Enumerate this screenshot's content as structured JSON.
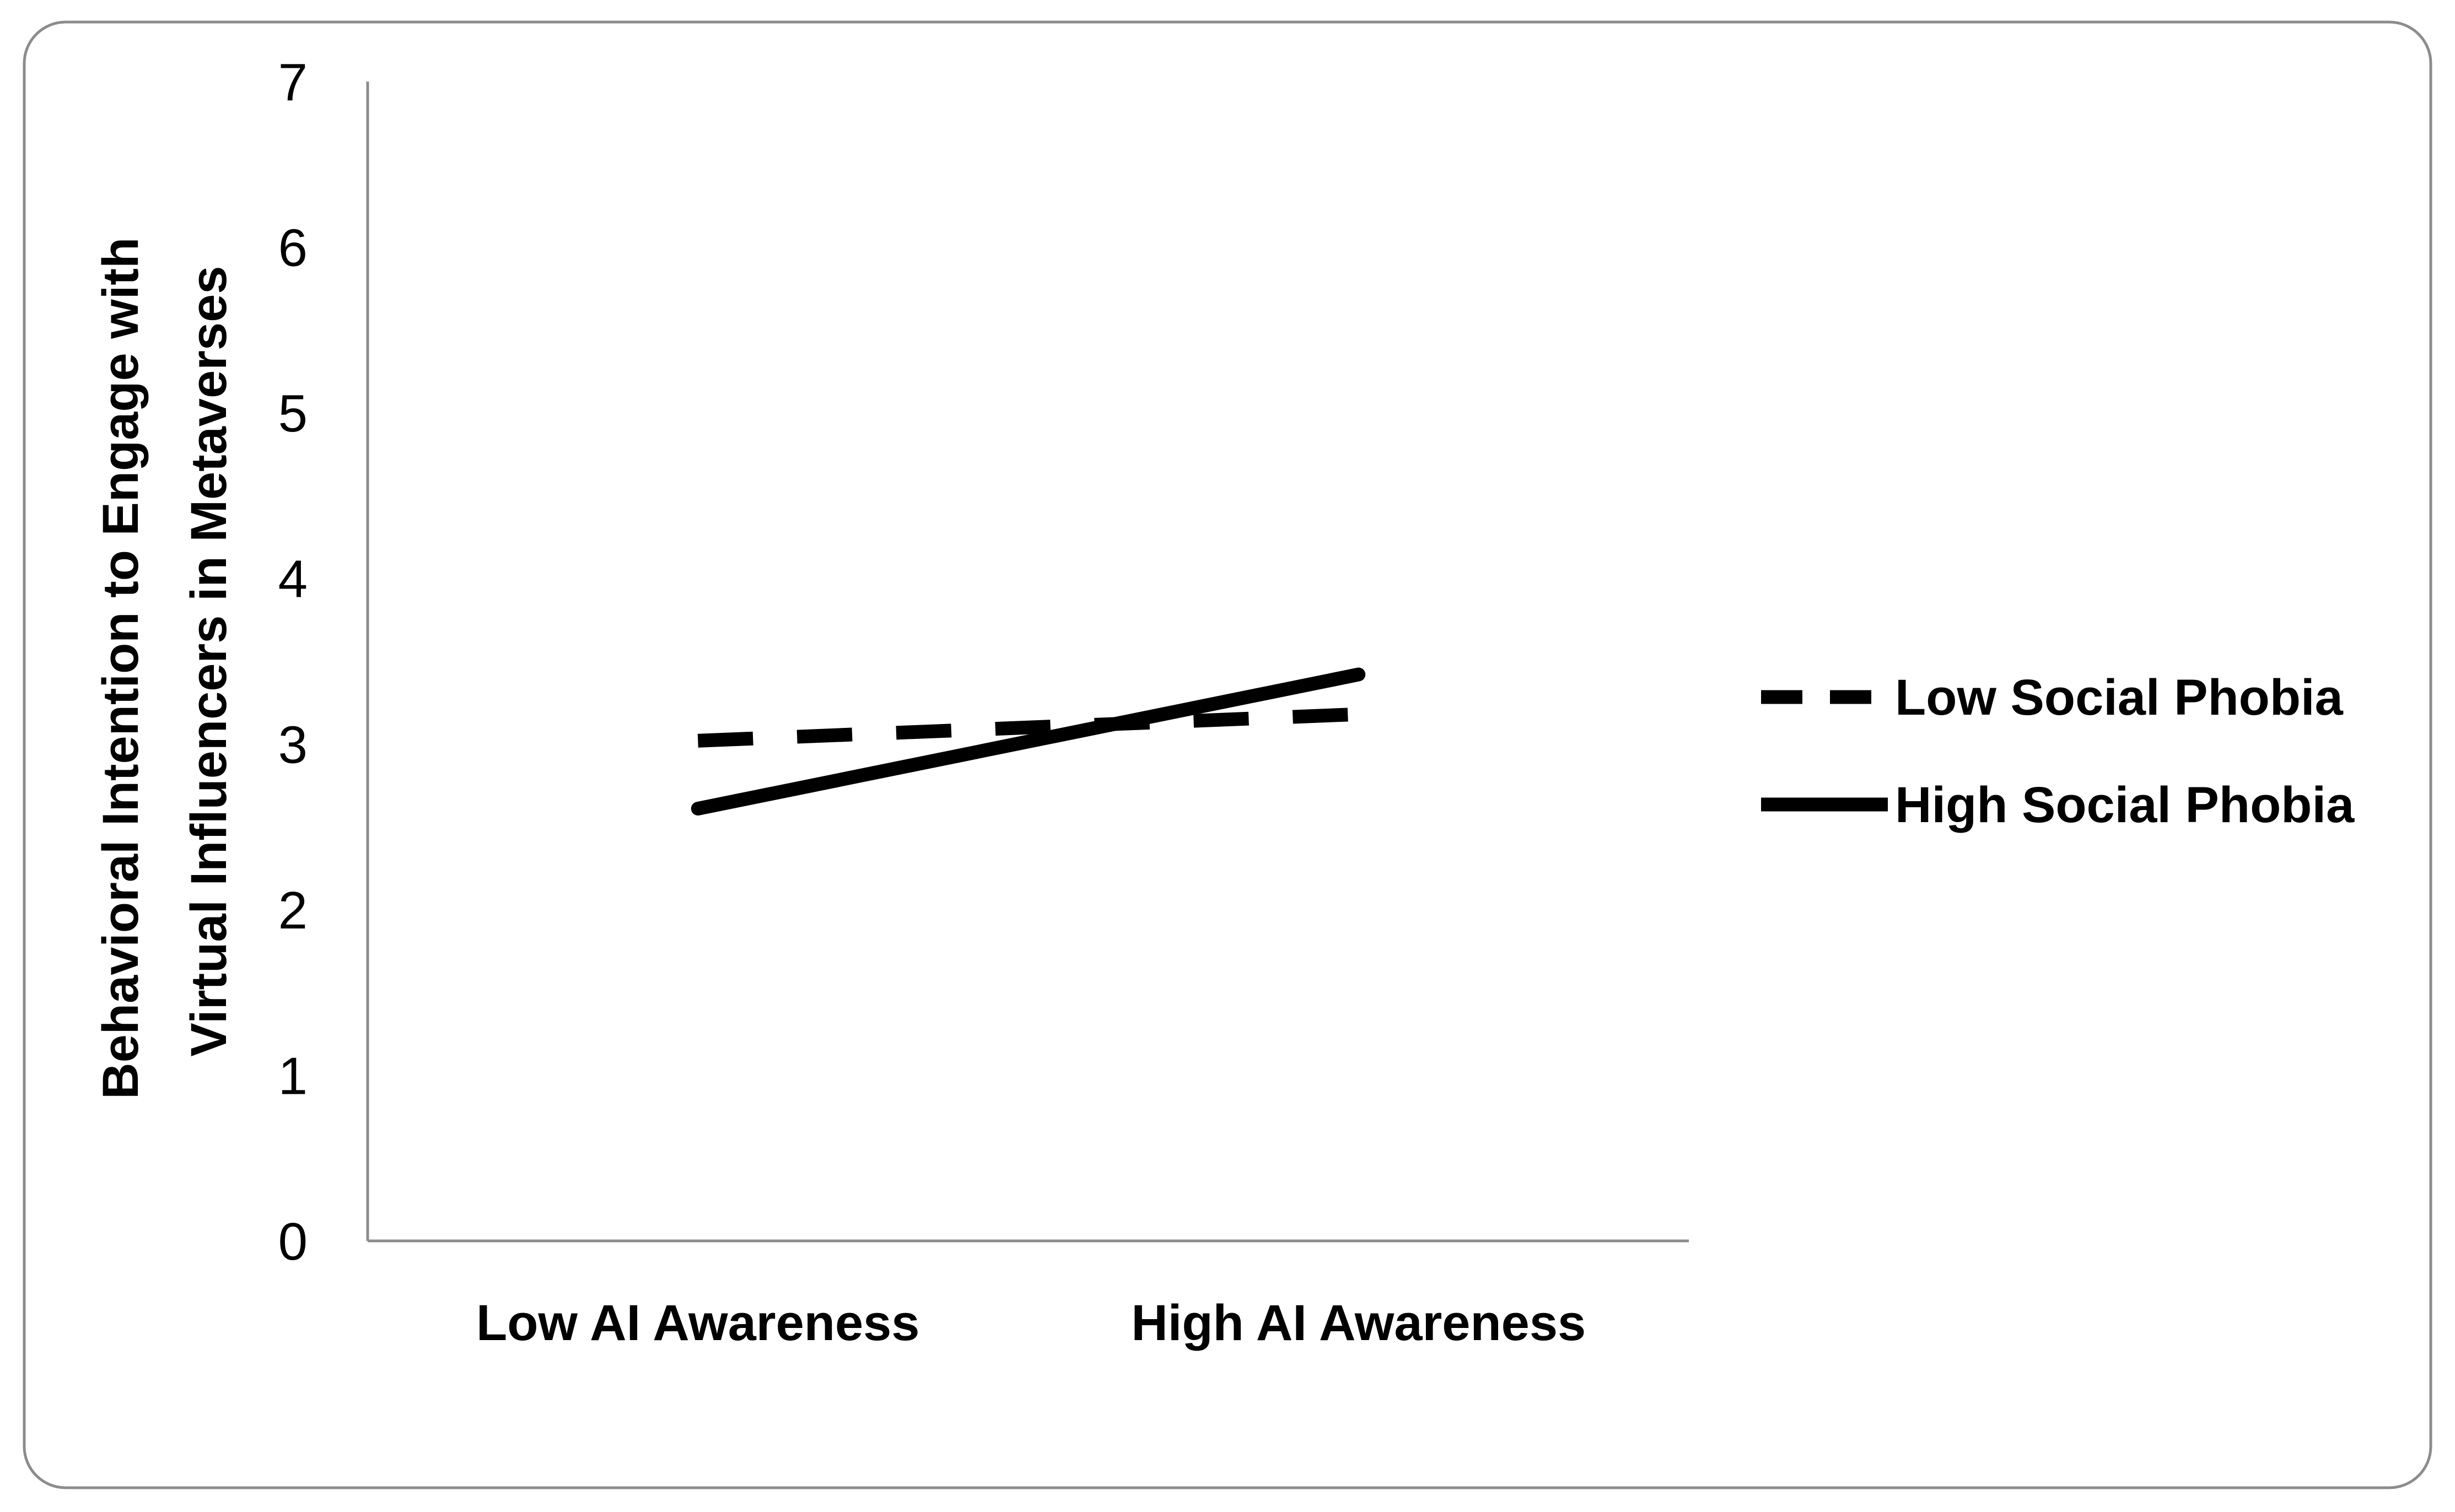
{
  "chart_data": {
    "type": "line",
    "title": "",
    "xlabel": "",
    "ylabel_lines": [
      "Behavioral Intention to Engage with",
      "Virtual Influencers in Metaverses"
    ],
    "categories": [
      "Low AI Awareness",
      "High AI Awareness"
    ],
    "ylim": [
      0,
      7
    ],
    "yticks": [
      "0",
      "1",
      "2",
      "3",
      "4",
      "5",
      "6",
      "7"
    ],
    "grid": false,
    "legend_position": "right",
    "series": [
      {
        "name": "Low Social Phobia",
        "values": [
          3.02,
          3.18
        ],
        "line_style": "dashed",
        "color": "#000000"
      },
      {
        "name": "High Social Phobia",
        "values": [
          2.61,
          3.42
        ],
        "line_style": "solid",
        "color": "#000000"
      }
    ]
  }
}
